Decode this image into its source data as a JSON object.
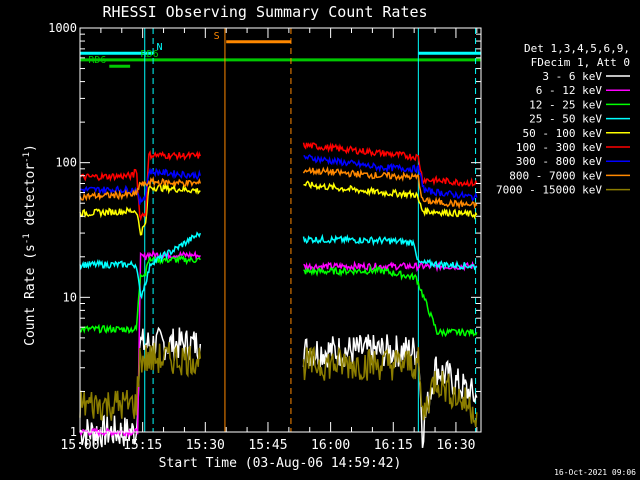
{
  "chart_data": {
    "type": "line",
    "title": "RHESSI Observing Summary Count Rates",
    "xlabel": "Start Time (03-Aug-06 14:59:42)",
    "ylabel_main": "Count Rate (s",
    "ylabel_sup": "-1",
    "ylabel_end": " detector",
    "ylabel_sup2": "-1",
    "ylabel_close": ")",
    "yscale": "log",
    "xlim": [
      0,
      96
    ],
    "ylim": [
      1,
      1000
    ],
    "xticks": [
      0,
      15,
      30,
      45,
      60,
      75,
      90
    ],
    "xtick_labels": [
      "15:00",
      "15:15",
      "15:30",
      "15:45",
      "16:00",
      "16:15",
      "16:30"
    ],
    "yticks": [
      1,
      10,
      100,
      1000
    ],
    "ytick_labels": [
      "1",
      "10",
      "100",
      "1000"
    ],
    "legend": {
      "placement": "top-right",
      "header": [
        "Det 1,3,4,5,6,9,",
        "FDecim 1, Att 0"
      ]
    },
    "timestamp": "16-Oct-2021 09:06",
    "series": [
      {
        "name": "3 - 6 keV",
        "color": "#ffffff",
        "segments": [
          [
            [
              0,
              1.0
            ],
            [
              13.5,
              1.0
            ],
            [
              14.3,
              4.5
            ],
            [
              28.8,
              4.5
            ]
          ],
          [
            [
              53.5,
              4.0
            ],
            [
              81.0,
              4.0
            ],
            [
              82.0,
              1.0
            ],
            [
              85.0,
              3.0
            ],
            [
              95.0,
              1.8
            ]
          ]
        ]
      },
      {
        "name": "6 - 12 keV",
        "color": "#ff00ff",
        "segments": [
          [
            [
              0,
              1.0
            ],
            [
              13.8,
              1.0
            ],
            [
              14.5,
              20.0
            ],
            [
              15.7,
              20.0
            ],
            [
              16.0,
              20.8
            ],
            [
              28.8,
              20.5
            ]
          ],
          [
            [
              53.5,
              17.0
            ],
            [
              85.2,
              17.0
            ],
            [
              86.0,
              17.0
            ],
            [
              95.0,
              17.0
            ]
          ]
        ]
      },
      {
        "name": "12 - 25 keV",
        "color": "#00ff00",
        "segments": [
          [
            [
              0,
              5.8
            ],
            [
              13.5,
              5.8
            ],
            [
              14.5,
              15.0
            ],
            [
              15.7,
              15.0
            ],
            [
              16.2,
              19.0
            ],
            [
              28.8,
              19.0
            ]
          ],
          [
            [
              53.5,
              15.5
            ],
            [
              72.0,
              15.8
            ],
            [
              80.5,
              14.0
            ],
            [
              85.5,
              5.5
            ],
            [
              95.0,
              5.5
            ]
          ]
        ]
      },
      {
        "name": "25 - 50 keV",
        "color": "#00ffff",
        "segments": [
          [
            [
              0,
              17.5
            ],
            [
              13.5,
              17.5
            ],
            [
              14.5,
              10.0
            ],
            [
              15.7,
              13.0
            ],
            [
              17.0,
              18.0
            ],
            [
              22.0,
              22.0
            ],
            [
              28.8,
              30.0
            ]
          ],
          [
            [
              53.5,
              27.0
            ],
            [
              72.0,
              26.5
            ],
            [
              80.0,
              25.5
            ],
            [
              81.0,
              18.0
            ],
            [
              95.0,
              17.0
            ]
          ]
        ]
      },
      {
        "name": "50 - 100 keV",
        "color": "#ffff00",
        "segments": [
          [
            [
              0,
              42.0
            ],
            [
              13.5,
              44.0
            ],
            [
              14.5,
              30.0
            ],
            [
              15.7,
              35.0
            ],
            [
              16.5,
              66.0
            ],
            [
              28.8,
              62.0
            ]
          ],
          [
            [
              53.5,
              69.0
            ],
            [
              72.0,
              60.0
            ],
            [
              80.5,
              58.0
            ],
            [
              82.0,
              44.0
            ],
            [
              95.0,
              41.0
            ]
          ]
        ]
      },
      {
        "name": "100 - 300 keV",
        "color": "#ff0000",
        "segments": [
          [
            [
              0,
              78.0
            ],
            [
              12.8,
              80.0
            ],
            [
              13.3,
              92.0
            ],
            [
              13.6,
              82.0
            ],
            [
              14.3,
              40.0
            ],
            [
              15.7,
              42.0
            ],
            [
              16.5,
              114.0
            ],
            [
              28.8,
              112.0
            ]
          ],
          [
            [
              53.5,
              135.0
            ],
            [
              72.0,
              118.0
            ],
            [
              81.0,
              110.0
            ],
            [
              82.0,
              75.0
            ],
            [
              95.0,
              70.0
            ]
          ]
        ]
      },
      {
        "name": "300 - 800 keV",
        "color": "#0000ff",
        "segments": [
          [
            [
              0,
              63.0
            ],
            [
              13.5,
              63.0
            ],
            [
              14.3,
              50.0
            ],
            [
              15.7,
              58.0
            ],
            [
              16.5,
              86.0
            ],
            [
              28.8,
              80.0
            ]
          ],
          [
            [
              53.5,
              110.0
            ],
            [
              72.0,
              92.0
            ],
            [
              81.0,
              90.0
            ],
            [
              82.5,
              62.0
            ],
            [
              95.0,
              55.0
            ]
          ]
        ]
      },
      {
        "name": "800 - 7000 keV",
        "color": "#ff8800",
        "segments": [
          [
            [
              0,
              56.0
            ],
            [
              13.5,
              58.0
            ],
            [
              14.3,
              70.0
            ],
            [
              15.7,
              68.0
            ],
            [
              16.5,
              72.0
            ],
            [
              28.8,
              70.0
            ]
          ],
          [
            [
              53.5,
              88.0
            ],
            [
              72.0,
              80.0
            ],
            [
              81.0,
              78.0
            ],
            [
              82.0,
              52.0
            ],
            [
              95.0,
              48.0
            ]
          ]
        ]
      },
      {
        "name": "7000 - 15000 keV",
        "color": "#8b7d00",
        "segments": [
          [
            [
              0,
              1.6
            ],
            [
              13.5,
              1.6
            ],
            [
              14.3,
              3.5
            ],
            [
              28.8,
              3.5
            ]
          ],
          [
            [
              53.5,
              3.2
            ],
            [
              81.0,
              3.2
            ],
            [
              82.0,
              1.3
            ],
            [
              85.0,
              2.5
            ],
            [
              95.0,
              1.4
            ]
          ]
        ]
      }
    ],
    "state_bars": [
      {
        "label": "N",
        "color": "#00ffff",
        "y": 650,
        "segments": [
          [
            0,
            17.5
          ],
          [
            81.0,
            96.0
          ]
        ],
        "label_x": 18.3
      },
      {
        "label": "RD6",
        "color": "#00c800",
        "y": 580,
        "segments": [
          [
            0,
            96.0
          ]
        ],
        "label_x": 14.5
      },
      {
        "label": "RD6",
        "color": "#00c800",
        "y": 520,
        "segments": [
          [
            7.0,
            12.0
          ]
        ],
        "label_x": 2.0
      },
      {
        "label": "S",
        "color": "#ff8800",
        "y": 790,
        "segments": [
          [
            35.0,
            50.5
          ]
        ],
        "label_x": 32.0
      }
    ],
    "vlines": [
      {
        "x": 15.5,
        "color": "#00ffff",
        "style": "solid"
      },
      {
        "x": 17.5,
        "color": "#00ffff",
        "style": "dashed"
      },
      {
        "x": 81.0,
        "color": "#00ffff",
        "style": "solid"
      },
      {
        "x": 94.7,
        "color": "#00ffff",
        "style": "dashed"
      },
      {
        "x": 34.7,
        "color": "#ff8800",
        "style": "solid"
      },
      {
        "x": 50.5,
        "color": "#ff8800",
        "style": "dashed"
      }
    ]
  }
}
